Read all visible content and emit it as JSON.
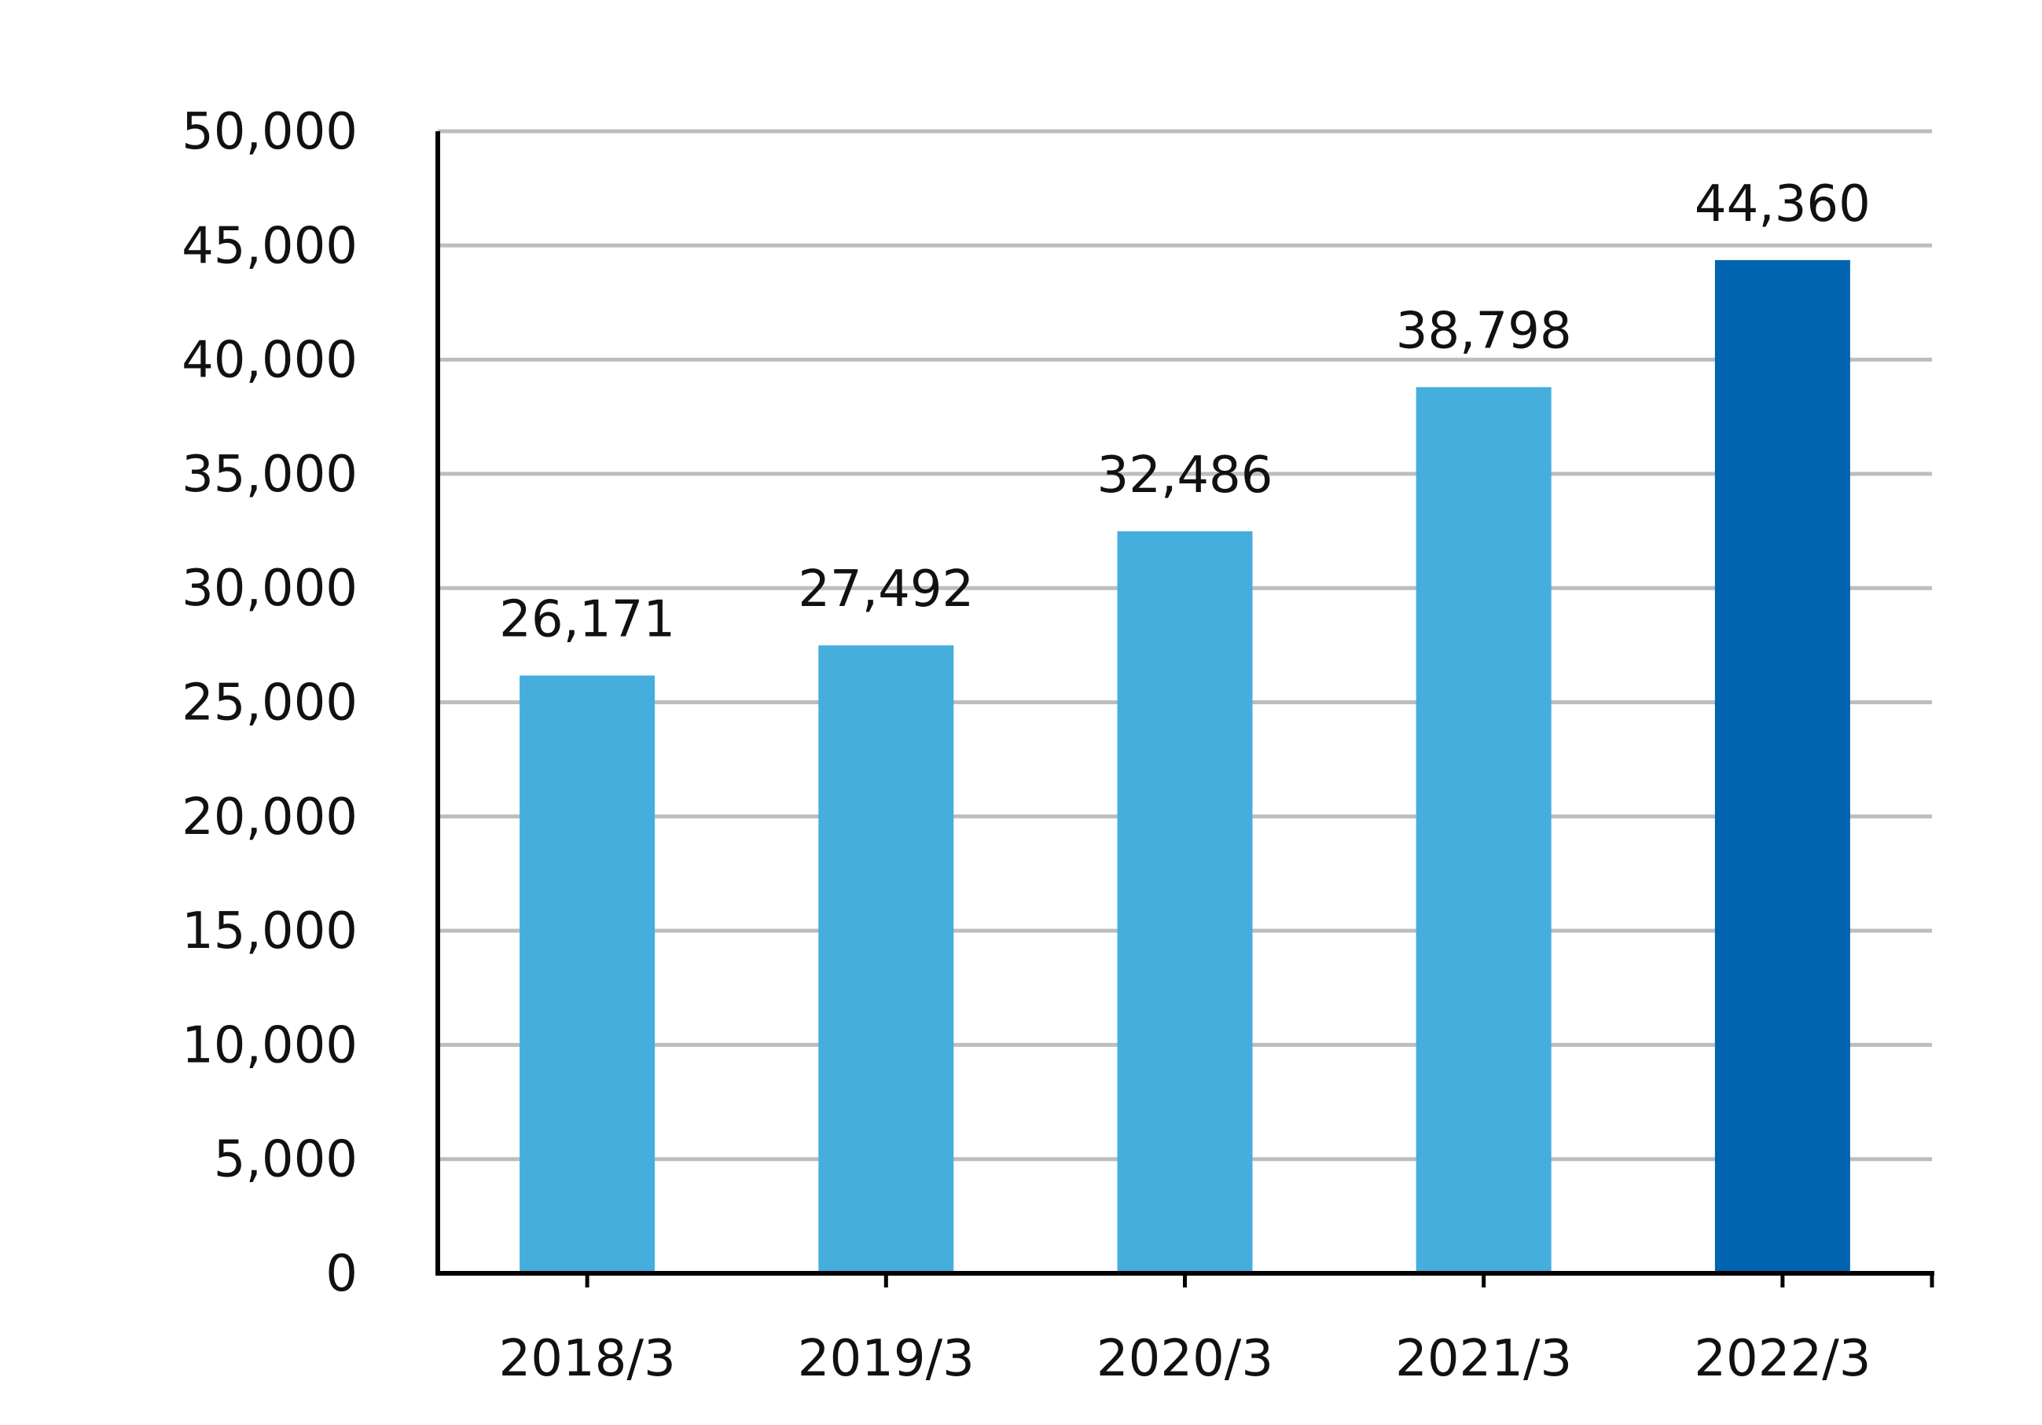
{
  "chart_data": {
    "type": "bar",
    "categories": [
      "2018/3",
      "2019/3",
      "2020/3",
      "2021/3",
      "2022/3"
    ],
    "values": [
      26171,
      27492,
      32486,
      38798,
      44360
    ],
    "value_labels": [
      "26,171",
      "27,492",
      "32,486",
      "38,798",
      "44,360"
    ],
    "y_ticks": [
      0,
      5000,
      10000,
      15000,
      20000,
      25000,
      30000,
      35000,
      40000,
      45000,
      50000
    ],
    "y_tick_labels": [
      "0",
      "5,000",
      "10,000",
      "15,000",
      "20,000",
      "25,000",
      "30,000",
      "35,000",
      "40,000",
      "45,000",
      "50,000"
    ],
    "ylim": [
      0,
      50000
    ],
    "grid": true,
    "colors": {
      "bar": "#45AEDD",
      "highlight_bar": "#0064B0",
      "grid": "#BDBDBD",
      "axis": "#000000"
    },
    "highlight_index": 4
  }
}
